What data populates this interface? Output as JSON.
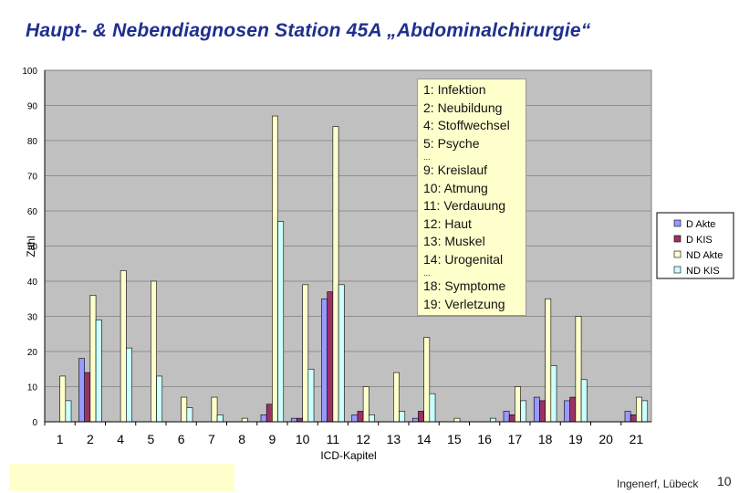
{
  "title": "Haupt- & Nebendiagnosen Station 45A „Abdominalchirurgie“",
  "footer": {
    "author": "Ingenerf, Lübeck",
    "page": "10"
  },
  "note_lines": [
    "1: Infektion",
    "2: Neubildung",
    "4: Stoffwechsel",
    "5: Psyche",
    "...",
    "9: Kreislauf",
    "10: Atmung",
    "11: Verdauung",
    "12: Haut",
    "13: Muskel",
    "14: Urogenital",
    "...",
    "18: Symptome",
    "19: Verletzung"
  ],
  "chart_data": {
    "type": "bar",
    "xlabel": "ICD-Kapitel",
    "ylabel": "Zahl",
    "ylim": [
      0,
      100
    ],
    "yticks": [
      0,
      10,
      20,
      30,
      40,
      50,
      60,
      70,
      80,
      90,
      100
    ],
    "categories": [
      "1",
      "2",
      "4",
      "5",
      "6",
      "7",
      "8",
      "9",
      "10",
      "11",
      "12",
      "13",
      "14",
      "15",
      "16",
      "17",
      "18",
      "19",
      "20",
      "21"
    ],
    "series": [
      {
        "name": "D Akte",
        "color": "#9999ff",
        "values": [
          0,
          18,
          0,
          0,
          0,
          0,
          0,
          2,
          1,
          35,
          2,
          0,
          1,
          0,
          0,
          3,
          7,
          6,
          0,
          3
        ]
      },
      {
        "name": "D KIS",
        "color": "#993366",
        "values": [
          0,
          14,
          0,
          0,
          0,
          0,
          0,
          5,
          1,
          37,
          3,
          0,
          3,
          0,
          0,
          2,
          6,
          7,
          0,
          2
        ]
      },
      {
        "name": "ND Akte",
        "color": "#ffffcc",
        "values": [
          13,
          36,
          43,
          40,
          7,
          7,
          1,
          87,
          39,
          84,
          10,
          14,
          24,
          1,
          0,
          10,
          35,
          30,
          0,
          7
        ]
      },
      {
        "name": "ND KIS",
        "color": "#ccffff",
        "values": [
          6,
          29,
          21,
          13,
          4,
          2,
          0,
          57,
          15,
          39,
          2,
          3,
          8,
          0,
          1,
          6,
          16,
          12,
          0,
          6
        ]
      }
    ],
    "grid": true,
    "legend_position": "right"
  }
}
